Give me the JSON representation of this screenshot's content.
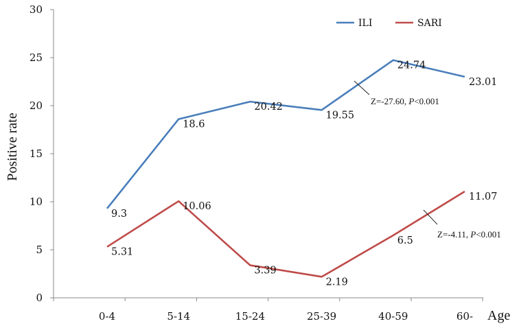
{
  "chart_data": {
    "type": "line",
    "xlabel": "Age",
    "ylabel": "Positive rate",
    "categories": [
      "0-4",
      "5-14",
      "15-24",
      "25-39",
      "40-59",
      "60-"
    ],
    "ylim": [
      0,
      30
    ],
    "yticks": [
      0,
      5,
      10,
      15,
      20,
      25,
      30
    ],
    "grid": false,
    "legend_position": "top-right",
    "series": [
      {
        "name": "ILI",
        "color": "#4a7ebb",
        "values": [
          9.3,
          18.6,
          20.42,
          19.55,
          24.74,
          23.01
        ],
        "labels": [
          "9.3",
          "18.6",
          "20.42",
          "19.55",
          "24.74",
          "23.01"
        ]
      },
      {
        "name": "SARI",
        "color": "#be4b48",
        "values": [
          5.31,
          10.06,
          3.39,
          2.19,
          6.5,
          11.07
        ],
        "labels": [
          "5.31",
          "10.06",
          "3.39",
          "2.19",
          "6.5",
          "11.07"
        ]
      }
    ],
    "annotations": [
      {
        "series": "ILI",
        "prefix": "Z=-27.60, ",
        "p": "P",
        "suffix": "<0.001"
      },
      {
        "series": "SARI",
        "prefix": "Z=-4.11, ",
        "p": "P",
        "suffix": "<0.001"
      }
    ]
  }
}
